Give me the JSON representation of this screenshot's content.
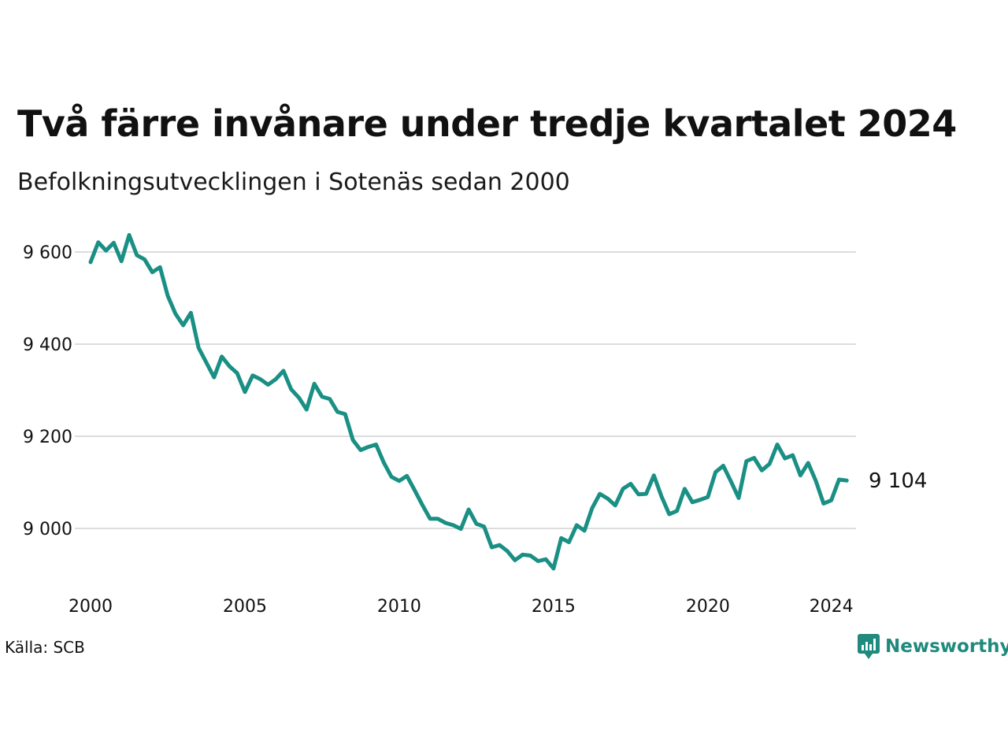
{
  "title": "Två färre invånare under tredje kvartalet 2024",
  "subtitle": "Befolkningsutvecklingen i Sotenäs sedan 2000",
  "source": "Källa: SCB",
  "brand": {
    "name": "Newsworthy",
    "icon": "newsworthy-logo-icon"
  },
  "colors": {
    "line": "#1a8f84",
    "grid": "#dddddd",
    "text": "#111111",
    "brand": "#1f8a7d"
  },
  "chart_data": {
    "type": "line",
    "title": "Två färre invånare under tredje kvartalet 2024",
    "subtitle": "Befolkningsutvecklingen i Sotenäs sedan 2000",
    "xlabel": "",
    "ylabel": "",
    "xlim": [
      2000.0,
      2024.75
    ],
    "ylim": [
      8900,
      9650
    ],
    "x_ticks": [
      2000,
      2005,
      2010,
      2015,
      2020,
      2024
    ],
    "x_tick_labels": [
      "2000",
      "2005",
      "2010",
      "2015",
      "2020",
      "2024"
    ],
    "y_ticks": [
      9000,
      9200,
      9400,
      9600
    ],
    "y_tick_labels": [
      "9 000",
      "9 200",
      "9 400",
      "9 600"
    ],
    "grid": true,
    "end_label": "9 104",
    "series": [
      {
        "x_start": 2000.0,
        "x_step": 0.25,
        "values": [
          9578,
          9621,
          9603,
          9620,
          9580,
          9637,
          9593,
          9584,
          9556,
          9567,
          9505,
          9466,
          9441,
          9468,
          9392,
          9360,
          9328,
          9373,
          9352,
          9337,
          9296,
          9332,
          9324,
          9312,
          9324,
          9342,
          9302,
          9284,
          9258,
          9314,
          9286,
          9281,
          9253,
          9248,
          9192,
          9170,
          9177,
          9182,
          9143,
          9112,
          9103,
          9114,
          9083,
          9051,
          9021,
          9021,
          9012,
          9007,
          8999,
          9041,
          9010,
          9004,
          8959,
          8964,
          8951,
          8931,
          8943,
          8941,
          8929,
          8933,
          8913,
          8979,
          8970,
          9007,
          8995,
          9044,
          9075,
          9065,
          9050,
          9086,
          9097,
          9074,
          9075,
          9115,
          9069,
          9031,
          9038,
          9086,
          9057,
          9062,
          9068,
          9122,
          9136,
          9102,
          9066,
          9146,
          9153,
          9126,
          9140,
          9182,
          9152,
          9159,
          9115,
          9142,
          9103,
          9054,
          9061,
          9106,
          9104
        ]
      }
    ]
  }
}
